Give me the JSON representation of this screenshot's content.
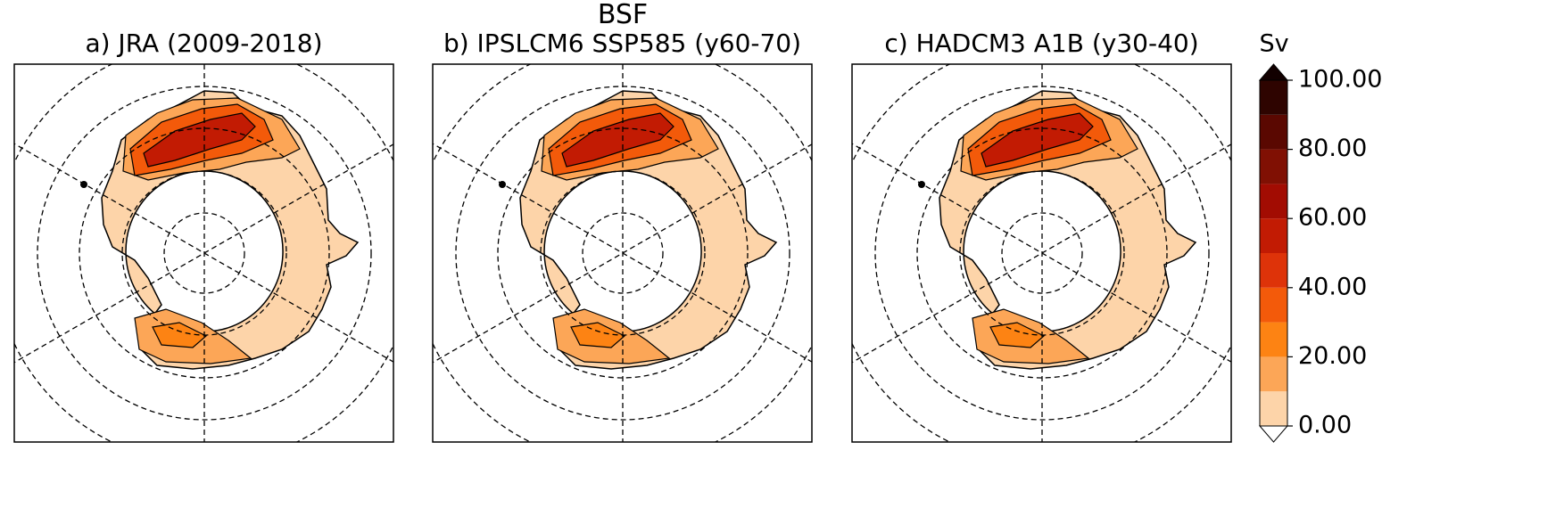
{
  "title": "BSF",
  "panels": [
    {
      "title": "a) JRA (2009-2018)"
    },
    {
      "title": "b) IPSLCM6 SSP585 (y60-70)"
    },
    {
      "title": "c) HADCM3 A1B (y30-40)"
    }
  ],
  "colorbar": {
    "label": "Sv",
    "lim": [
      0,
      100
    ],
    "levels": [
      0,
      10,
      20,
      30,
      40,
      50,
      60,
      70,
      80,
      90,
      100
    ],
    "colors": [
      "#fdd4a9",
      "#fca657",
      "#fd8313",
      "#f35a0a",
      "#de3309",
      "#c21b03",
      "#a20c02",
      "#801003",
      "#5a0801",
      "#2e0400"
    ],
    "over_color": "#120000",
    "under_color": "#ffffff",
    "ticks": [
      {
        "value": 0,
        "label": "0.00"
      },
      {
        "value": 20,
        "label": "20.00"
      },
      {
        "value": 40,
        "label": "40.00"
      },
      {
        "value": 60,
        "label": "60.00"
      },
      {
        "value": 80,
        "label": "80.00"
      },
      {
        "value": 100,
        "label": "100.00"
      }
    ]
  }
}
